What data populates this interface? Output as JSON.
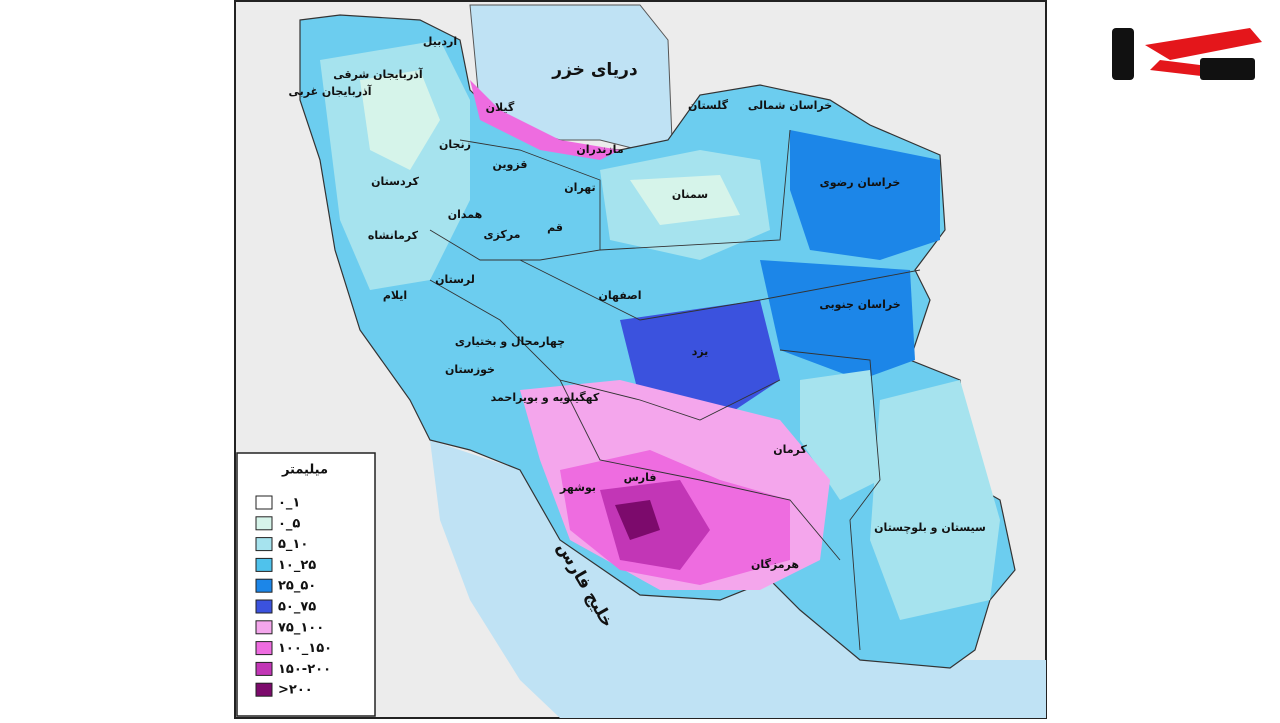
{
  "map": {
    "sea_labels": [
      "دریای خزر",
      "خلیج فارس"
    ],
    "province_labels": [
      "اردبیل",
      "آذربایجان شرقی",
      "آذربایجان غربی",
      "گیلان",
      "مازندران",
      "گلستان",
      "خراسان شمالی",
      "زنجان",
      "قزوین",
      "تهران",
      "کردستان",
      "سمنان",
      "خراسان رضوی",
      "همدان",
      "قم",
      "مرکزی",
      "کرمانشاه",
      "لرستان",
      "ایلام",
      "اصفهان",
      "خراسان جنوبی",
      "چهارمحال و بختیاری",
      "یزد",
      "خوزستان",
      "کهگیلویه و بویراحمد",
      "فارس",
      "بوشهر",
      "کرمان",
      "سیستان و بلوچستان",
      "هرمزگان"
    ],
    "legend": {
      "title": "میلیمتر",
      "items": [
        {
          "label": "۰_۱",
          "color": "#ffffff"
        },
        {
          "label": "۰_۵",
          "color": "#d6f4ea"
        },
        {
          "label": "۵_۱۰",
          "color": "#a6e3ee"
        },
        {
          "label": "۱۰_۲۵",
          "color": "#4fc2ec"
        },
        {
          "label": "۲۵_۵۰",
          "color": "#1c86e8"
        },
        {
          "label": "۵۰_۷۵",
          "color": "#3b52de"
        },
        {
          "label": "۷۵_۱۰۰",
          "color": "#f4a6ec"
        },
        {
          "label": "۱۰۰_۱۵۰",
          "color": "#ee6ce0"
        },
        {
          "label": "۱۵۰-۲۰۰",
          "color": "#c236b6"
        },
        {
          "label": ">۲۰۰",
          "color": "#7c0a6c"
        }
      ]
    }
  }
}
